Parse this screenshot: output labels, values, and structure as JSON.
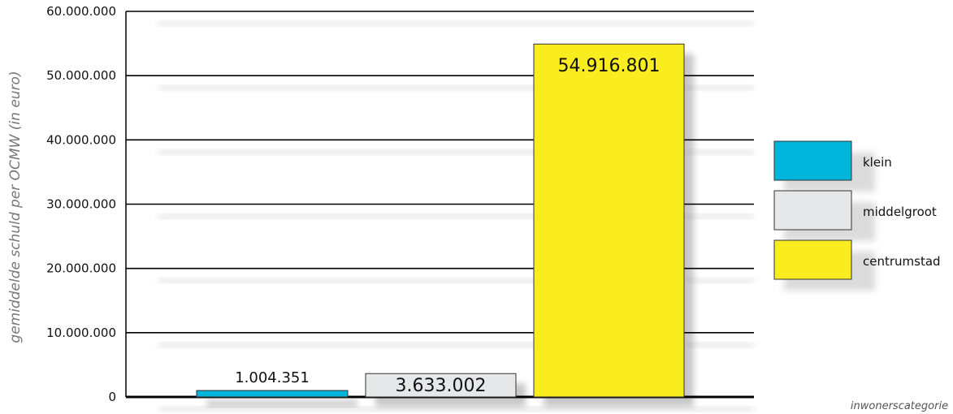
{
  "chart_data": {
    "type": "bar",
    "categories": [
      "klein",
      "middelgroot",
      "centrumstad"
    ],
    "values": [
      1004351,
      3633002,
      54916801
    ],
    "value_labels": [
      "1.004.351",
      "3.633.002",
      "54.916.801"
    ],
    "colors": [
      "#00b5d9",
      "#e6e7e8",
      "#f9ec1f"
    ],
    "ylabel": "gemiddelde schuld per OCMW (in euro)",
    "xlabel": "inwonerscategorie",
    "ylim": [
      0,
      60000000
    ],
    "yticks": [
      0,
      10000000,
      20000000,
      30000000,
      40000000,
      50000000,
      60000000
    ],
    "ytick_labels": [
      "0",
      "10.000.000",
      "20.000.000",
      "30.000.000",
      "40.000.000",
      "50.000.000",
      "60.000.000"
    ],
    "grid": true,
    "legend": {
      "position": "right",
      "entries": [
        {
          "label": "klein",
          "color": "#00b5d9"
        },
        {
          "label": "middelgroot",
          "color": "#e6e7e8"
        },
        {
          "label": "centrumstad",
          "color": "#f9ec1f"
        }
      ]
    }
  }
}
